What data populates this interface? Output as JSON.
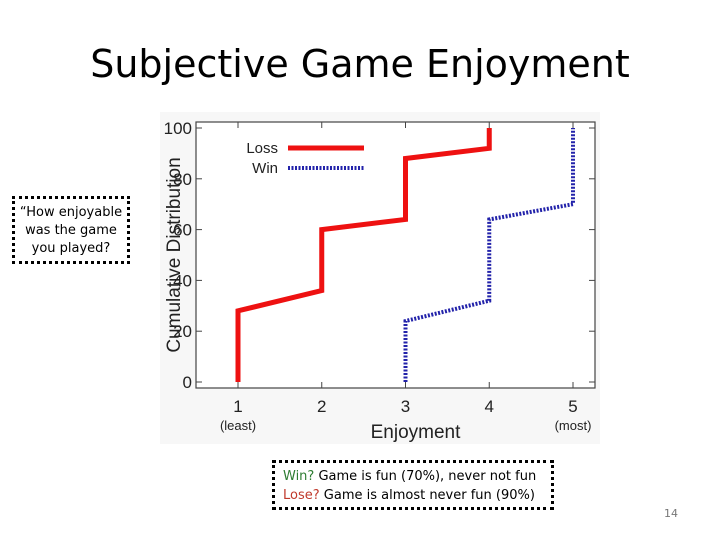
{
  "slide": {
    "title": "Subjective Game Enjoyment",
    "page_number": "14",
    "left_callout": [
      "“How enjoyable",
      "was the game",
      "you played?"
    ],
    "bottom_callout": {
      "line1_keyword": "Win?",
      "line1_text": " Game is fun (70%), never not fun",
      "line2_keyword": "Lose?",
      "line2_text": " Game is almost never fun (90%)"
    },
    "colors": {
      "win_keyword": "#2e7d32",
      "lose_keyword": "#c0392b"
    }
  },
  "chart_data": {
    "type": "line",
    "step": true,
    "xlabel": "Enjoyment",
    "ylabel": "Cumulative Distribution",
    "xlim": [
      1,
      5
    ],
    "ylim": [
      0,
      100
    ],
    "x_ticks": [
      1,
      2,
      3,
      4,
      5
    ],
    "x_tick_sublabels": {
      "1": "(least)",
      "5": "(most)"
    },
    "y_ticks": [
      0,
      20,
      40,
      60,
      80,
      100
    ],
    "legend": "top-left",
    "grid": false,
    "series": [
      {
        "name": "Loss",
        "color": "#ee1111",
        "style": "solid",
        "points": [
          [
            1,
            0
          ],
          [
            1,
            28
          ],
          [
            2,
            36
          ],
          [
            2,
            60
          ],
          [
            3,
            64
          ],
          [
            3,
            88
          ],
          [
            4,
            92
          ],
          [
            4,
            100
          ]
        ]
      },
      {
        "name": "Win",
        "color": "#2222aa",
        "style": "dotted",
        "points": [
          [
            3,
            0
          ],
          [
            3,
            24
          ],
          [
            4,
            32
          ],
          [
            4,
            64
          ],
          [
            5,
            70
          ],
          [
            5,
            100
          ]
        ]
      }
    ]
  }
}
